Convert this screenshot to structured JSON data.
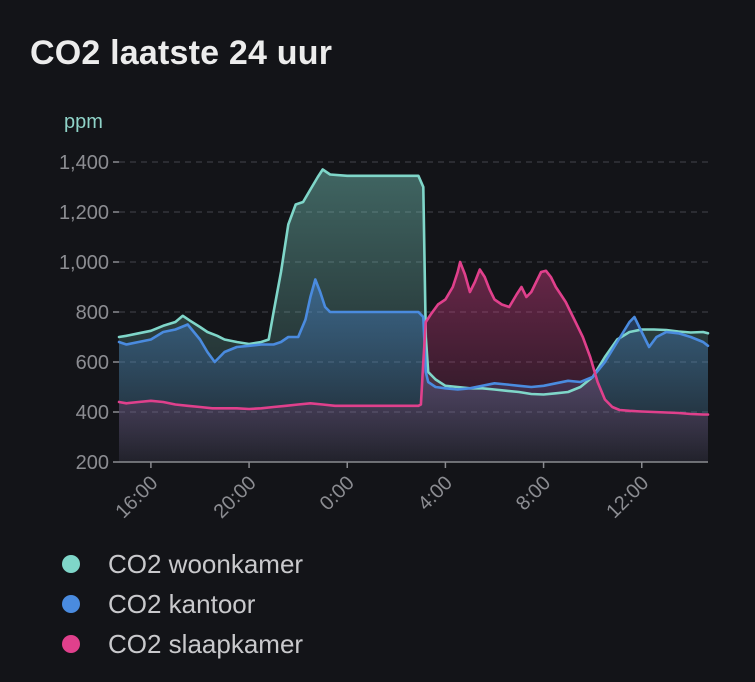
{
  "card": {
    "title": "CO2 laatste 24 uur"
  },
  "chart_data": {
    "type": "area",
    "title": "CO2 laatste 24 uur",
    "ylabel": "ppm",
    "xlabel": "",
    "ylim": [
      200,
      1400
    ],
    "yticks": [
      200,
      400,
      600,
      800,
      1000,
      1200,
      1400
    ],
    "ytick_labels": [
      "200",
      "400",
      "600",
      "800",
      "1,000",
      "1,200",
      "1,400"
    ],
    "xlim": [
      14.7,
      38.7
    ],
    "xticks": [
      16,
      20,
      24,
      28,
      32,
      36
    ],
    "xtick_labels": [
      "16:00",
      "20:00",
      "0:00",
      "4:00",
      "8:00",
      "12:00"
    ],
    "grid": true,
    "legend_position": "bottom-left",
    "series": [
      {
        "name": "CO2 woonkamer",
        "color": "#7fd6c9",
        "points": [
          [
            14.7,
            700
          ],
          [
            15.0,
            705
          ],
          [
            15.5,
            715
          ],
          [
            16.0,
            725
          ],
          [
            16.5,
            745
          ],
          [
            17.0,
            760
          ],
          [
            17.3,
            785
          ],
          [
            17.6,
            765
          ],
          [
            18.0,
            740
          ],
          [
            18.3,
            720
          ],
          [
            18.7,
            705
          ],
          [
            19.0,
            690
          ],
          [
            19.5,
            680
          ],
          [
            20.0,
            672
          ],
          [
            20.5,
            680
          ],
          [
            20.8,
            690
          ],
          [
            21.0,
            800
          ],
          [
            21.3,
            960
          ],
          [
            21.6,
            1150
          ],
          [
            21.9,
            1230
          ],
          [
            22.2,
            1240
          ],
          [
            22.5,
            1290
          ],
          [
            22.8,
            1340
          ],
          [
            23.0,
            1370
          ],
          [
            23.3,
            1350
          ],
          [
            24.0,
            1345
          ],
          [
            25.0,
            1345
          ],
          [
            26.0,
            1345
          ],
          [
            26.9,
            1345
          ],
          [
            27.1,
            1300
          ],
          [
            27.2,
            700
          ],
          [
            27.3,
            560
          ],
          [
            27.6,
            530
          ],
          [
            28.0,
            505
          ],
          [
            28.5,
            500
          ],
          [
            29.0,
            495
          ],
          [
            29.5,
            495
          ],
          [
            30.0,
            490
          ],
          [
            30.5,
            485
          ],
          [
            31.0,
            480
          ],
          [
            31.5,
            472
          ],
          [
            32.0,
            470
          ],
          [
            32.5,
            475
          ],
          [
            33.0,
            480
          ],
          [
            33.5,
            500
          ],
          [
            34.0,
            540
          ],
          [
            34.5,
            620
          ],
          [
            35.0,
            690
          ],
          [
            35.5,
            720
          ],
          [
            36.0,
            730
          ],
          [
            36.5,
            730
          ],
          [
            37.0,
            728
          ],
          [
            37.5,
            722
          ],
          [
            38.0,
            718
          ],
          [
            38.5,
            720
          ],
          [
            38.7,
            715
          ]
        ]
      },
      {
        "name": "CO2 kantoor",
        "color": "#4a8bdf",
        "points": [
          [
            14.7,
            680
          ],
          [
            15.0,
            670
          ],
          [
            15.5,
            680
          ],
          [
            16.0,
            690
          ],
          [
            16.5,
            720
          ],
          [
            17.0,
            730
          ],
          [
            17.5,
            750
          ],
          [
            18.0,
            690
          ],
          [
            18.3,
            640
          ],
          [
            18.6,
            600
          ],
          [
            19.0,
            640
          ],
          [
            19.5,
            660
          ],
          [
            20.0,
            665
          ],
          [
            20.5,
            670
          ],
          [
            21.0,
            670
          ],
          [
            21.3,
            680
          ],
          [
            21.6,
            700
          ],
          [
            22.0,
            700
          ],
          [
            22.3,
            770
          ],
          [
            22.5,
            860
          ],
          [
            22.7,
            930
          ],
          [
            22.9,
            880
          ],
          [
            23.1,
            820
          ],
          [
            23.3,
            800
          ],
          [
            24.0,
            800
          ],
          [
            25.0,
            800
          ],
          [
            26.0,
            800
          ],
          [
            26.9,
            800
          ],
          [
            27.1,
            780
          ],
          [
            27.2,
            560
          ],
          [
            27.3,
            520
          ],
          [
            27.6,
            500
          ],
          [
            28.0,
            495
          ],
          [
            28.5,
            490
          ],
          [
            29.0,
            495
          ],
          [
            29.5,
            505
          ],
          [
            30.0,
            515
          ],
          [
            30.5,
            510
          ],
          [
            31.0,
            505
          ],
          [
            31.5,
            500
          ],
          [
            32.0,
            505
          ],
          [
            32.5,
            515
          ],
          [
            33.0,
            525
          ],
          [
            33.5,
            520
          ],
          [
            34.0,
            540
          ],
          [
            34.5,
            600
          ],
          [
            35.0,
            680
          ],
          [
            35.5,
            760
          ],
          [
            35.7,
            780
          ],
          [
            36.0,
            720
          ],
          [
            36.3,
            660
          ],
          [
            36.6,
            700
          ],
          [
            37.0,
            720
          ],
          [
            37.5,
            715
          ],
          [
            38.0,
            700
          ],
          [
            38.5,
            680
          ],
          [
            38.7,
            665
          ]
        ]
      },
      {
        "name": "CO2 slaapkamer",
        "color": "#e0408c",
        "points": [
          [
            14.7,
            440
          ],
          [
            15.0,
            435
          ],
          [
            15.5,
            440
          ],
          [
            16.0,
            445
          ],
          [
            16.5,
            440
          ],
          [
            17.0,
            430
          ],
          [
            17.5,
            425
          ],
          [
            18.0,
            420
          ],
          [
            18.5,
            415
          ],
          [
            19.0,
            415
          ],
          [
            19.5,
            415
          ],
          [
            20.0,
            412
          ],
          [
            20.5,
            415
          ],
          [
            21.0,
            420
          ],
          [
            21.5,
            425
          ],
          [
            22.0,
            430
          ],
          [
            22.5,
            435
          ],
          [
            23.0,
            430
          ],
          [
            23.5,
            425
          ],
          [
            24.0,
            425
          ],
          [
            25.0,
            425
          ],
          [
            26.0,
            425
          ],
          [
            26.9,
            425
          ],
          [
            27.0,
            430
          ],
          [
            27.1,
            600
          ],
          [
            27.2,
            760
          ],
          [
            27.4,
            790
          ],
          [
            27.7,
            830
          ],
          [
            28.0,
            850
          ],
          [
            28.3,
            900
          ],
          [
            28.5,
            960
          ],
          [
            28.6,
            1000
          ],
          [
            28.8,
            950
          ],
          [
            29.0,
            880
          ],
          [
            29.2,
            920
          ],
          [
            29.4,
            970
          ],
          [
            29.6,
            940
          ],
          [
            29.8,
            890
          ],
          [
            30.0,
            850
          ],
          [
            30.3,
            830
          ],
          [
            30.6,
            820
          ],
          [
            30.9,
            870
          ],
          [
            31.1,
            900
          ],
          [
            31.3,
            860
          ],
          [
            31.5,
            880
          ],
          [
            31.7,
            920
          ],
          [
            31.9,
            960
          ],
          [
            32.1,
            965
          ],
          [
            32.3,
            940
          ],
          [
            32.5,
            900
          ],
          [
            32.7,
            870
          ],
          [
            32.9,
            840
          ],
          [
            33.1,
            800
          ],
          [
            33.3,
            760
          ],
          [
            33.6,
            700
          ],
          [
            33.9,
            620
          ],
          [
            34.2,
            520
          ],
          [
            34.5,
            450
          ],
          [
            34.8,
            420
          ],
          [
            35.1,
            408
          ],
          [
            35.5,
            405
          ],
          [
            36.0,
            402
          ],
          [
            36.5,
            400
          ],
          [
            37.0,
            398
          ],
          [
            37.5,
            396
          ],
          [
            38.0,
            392
          ],
          [
            38.5,
            390
          ],
          [
            38.7,
            390
          ]
        ]
      }
    ]
  }
}
